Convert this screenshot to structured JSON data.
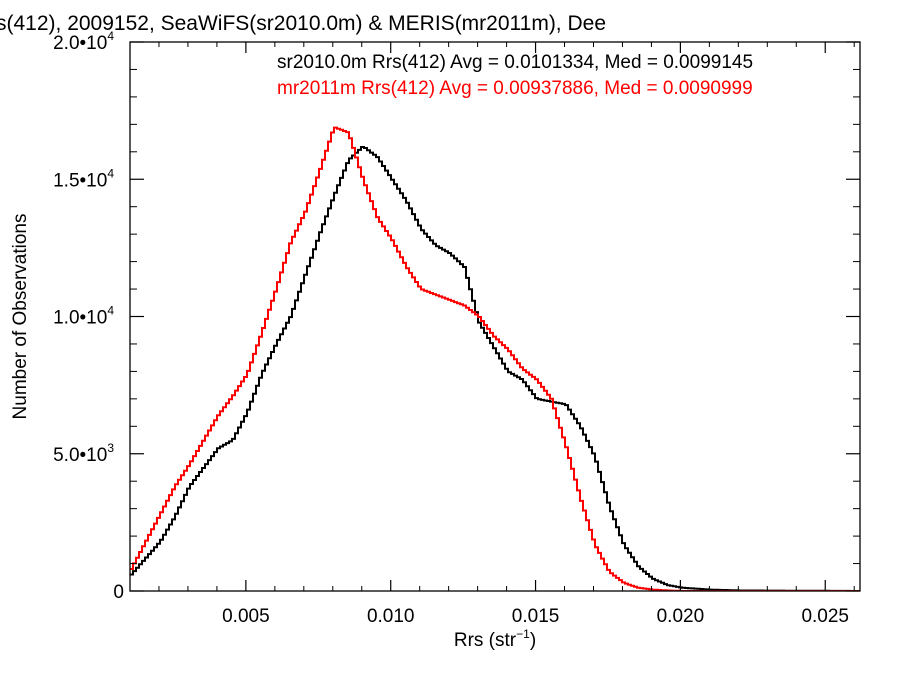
{
  "chart_data": {
    "type": "line",
    "title": "s(412), 2009152, SeaWiFS(sr2010.0m) & MERIS(mr2011m), Dee",
    "xlabel": "Rrs (str",
    "xlabel_sup": "−1",
    "xlabel_close": ")",
    "ylabel": "Number of Observations",
    "xlim": [
      0.001,
      0.0262
    ],
    "ylim": [
      0,
      20000
    ],
    "x_ticks": [
      {
        "value": 0.005,
        "label": "0.005"
      },
      {
        "value": 0.01,
        "label": "0.010"
      },
      {
        "value": 0.015,
        "label": "0.015"
      },
      {
        "value": 0.02,
        "label": "0.020"
      },
      {
        "value": 0.025,
        "label": "0.025"
      }
    ],
    "y_ticks": [
      {
        "value": 0,
        "mant": "0",
        "exp": ""
      },
      {
        "value": 5000,
        "mant": "5.0•10",
        "exp": "3"
      },
      {
        "value": 10000,
        "mant": "1.0•10",
        "exp": "4"
      },
      {
        "value": 15000,
        "mant": "1.5•10",
        "exp": "4"
      },
      {
        "value": 20000,
        "mant": "2.0•10",
        "exp": "4"
      }
    ],
    "legend": [
      {
        "text": "sr2010.0m Rrs(412) Avg = 0.0101334, Med = 0.0099145",
        "color": "#000000"
      },
      {
        "text": "mr2011m Rrs(412) Avg = 0.00937886, Med = 0.0090999",
        "color": "#ff0000"
      }
    ],
    "series": [
      {
        "color": "#000000",
        "x": [
          0.001,
          0.002,
          0.0025,
          0.003,
          0.0035,
          0.004,
          0.0045,
          0.005,
          0.0055,
          0.006,
          0.0065,
          0.007,
          0.0075,
          0.008,
          0.0085,
          0.009,
          0.0095,
          0.01,
          0.0105,
          0.011,
          0.0115,
          0.012,
          0.0125,
          0.013,
          0.0135,
          0.014,
          0.0145,
          0.015,
          0.0155,
          0.016,
          0.0165,
          0.017,
          0.0175,
          0.018,
          0.0185,
          0.019,
          0.0195,
          0.02,
          0.021,
          0.022,
          0.0262
        ],
        "y": [
          600,
          1800,
          2700,
          3800,
          4500,
          5200,
          5500,
          6500,
          7900,
          9000,
          10000,
          11500,
          13000,
          14400,
          15700,
          16200,
          15800,
          15000,
          14200,
          13200,
          12600,
          12300,
          11800,
          9800,
          8900,
          8000,
          7700,
          7000,
          6900,
          6800,
          6000,
          4900,
          3100,
          1700,
          900,
          450,
          220,
          120,
          50,
          20,
          0
        ]
      },
      {
        "color": "#ff0000",
        "x": [
          0.001,
          0.0015,
          0.002,
          0.0025,
          0.003,
          0.0035,
          0.004,
          0.0045,
          0.005,
          0.0055,
          0.006,
          0.0065,
          0.007,
          0.0075,
          0.008,
          0.0085,
          0.009,
          0.0095,
          0.01,
          0.0105,
          0.011,
          0.0115,
          0.012,
          0.0125,
          0.013,
          0.0135,
          0.014,
          0.0145,
          0.015,
          0.0155,
          0.016,
          0.0165,
          0.017,
          0.0175,
          0.018,
          0.0185,
          0.019,
          0.0195,
          0.02,
          0.0262
        ],
        "y": [
          800,
          1800,
          2800,
          3800,
          4600,
          5500,
          6400,
          7100,
          7900,
          9400,
          11000,
          12700,
          13800,
          15300,
          16900,
          16700,
          15000,
          13600,
          12800,
          11800,
          11000,
          10800,
          10600,
          10400,
          10000,
          9300,
          8800,
          8100,
          7700,
          7000,
          5300,
          3400,
          1700,
          700,
          300,
          120,
          50,
          20,
          0,
          0
        ]
      }
    ]
  }
}
